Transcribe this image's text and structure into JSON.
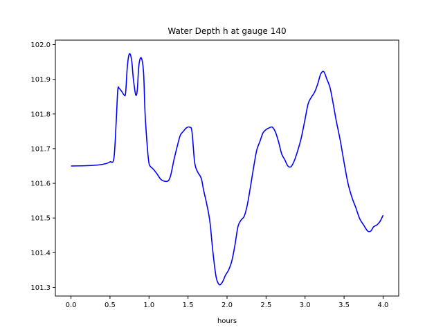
{
  "chart_data": {
    "type": "line",
    "title": "Water Depth h at gauge 140",
    "xlabel": "hours",
    "ylabel": "",
    "xlim": [
      -0.2,
      4.2
    ],
    "ylim": [
      101.275,
      102.013
    ],
    "xticks": [
      0.0,
      0.5,
      1.0,
      1.5,
      2.0,
      2.5,
      3.0,
      3.5,
      4.0
    ],
    "xtick_labels": [
      "0.0",
      "0.5",
      "1.0",
      "1.5",
      "2.0",
      "2.5",
      "3.0",
      "3.5",
      "4.0"
    ],
    "yticks": [
      101.3,
      101.4,
      101.5,
      101.6,
      101.7,
      101.8,
      101.9,
      102.0
    ],
    "ytick_labels": [
      "101.3",
      "101.4",
      "101.5",
      "101.6",
      "101.7",
      "101.8",
      "101.9",
      "102.0"
    ],
    "grid": false,
    "series": [
      {
        "color": "#0000ff",
        "x": [
          0.0,
          0.2,
          0.35,
          0.45,
          0.5,
          0.55,
          0.58,
          0.6,
          0.62,
          0.65,
          0.68,
          0.7,
          0.72,
          0.74,
          0.76,
          0.78,
          0.8,
          0.83,
          0.85,
          0.87,
          0.9,
          0.93,
          0.95,
          0.98,
          1.0,
          1.02,
          1.05,
          1.1,
          1.15,
          1.2,
          1.25,
          1.28,
          1.32,
          1.36,
          1.4,
          1.44,
          1.48,
          1.52,
          1.55,
          1.58,
          1.6,
          1.63,
          1.67,
          1.7,
          1.74,
          1.78,
          1.82,
          1.86,
          1.9,
          1.94,
          1.98,
          2.02,
          2.06,
          2.1,
          2.14,
          2.18,
          2.22,
          2.26,
          2.3,
          2.34,
          2.38,
          2.42,
          2.46,
          2.5,
          2.54,
          2.58,
          2.62,
          2.66,
          2.7,
          2.74,
          2.78,
          2.82,
          2.86,
          2.9,
          2.95,
          3.0,
          3.04,
          3.08,
          3.12,
          3.16,
          3.2,
          3.24,
          3.28,
          3.32,
          3.36,
          3.4,
          3.45,
          3.5,
          3.55,
          3.6,
          3.65,
          3.7,
          3.75,
          3.8,
          3.84,
          3.88,
          3.92,
          3.96,
          4.0
        ],
        "y": [
          101.65,
          101.651,
          101.653,
          101.657,
          101.662,
          101.672,
          101.78,
          101.87,
          101.873,
          101.865,
          101.855,
          101.86,
          101.93,
          101.968,
          101.972,
          101.95,
          101.9,
          101.855,
          101.87,
          101.94,
          101.962,
          101.92,
          101.8,
          101.7,
          101.658,
          101.648,
          101.642,
          101.628,
          101.612,
          101.606,
          101.608,
          101.625,
          101.668,
          101.705,
          101.738,
          101.75,
          101.76,
          101.762,
          101.75,
          101.67,
          101.645,
          101.63,
          101.614,
          101.58,
          101.54,
          101.49,
          101.4,
          101.33,
          101.308,
          101.315,
          101.335,
          101.35,
          101.375,
          101.42,
          101.475,
          101.494,
          101.505,
          101.538,
          101.59,
          101.645,
          101.695,
          101.72,
          101.745,
          101.755,
          101.76,
          101.762,
          101.748,
          101.72,
          101.685,
          101.668,
          101.65,
          101.648,
          101.664,
          101.69,
          101.73,
          101.785,
          101.83,
          101.848,
          101.862,
          101.885,
          101.915,
          101.922,
          101.9,
          101.876,
          101.83,
          101.78,
          101.725,
          101.66,
          101.6,
          101.56,
          101.53,
          101.498,
          101.48,
          101.463,
          101.462,
          101.475,
          101.48,
          101.49,
          101.508
        ]
      }
    ]
  },
  "colors": {
    "line": "#0000ff",
    "axes": "#000000",
    "background": "#ffffff"
  }
}
